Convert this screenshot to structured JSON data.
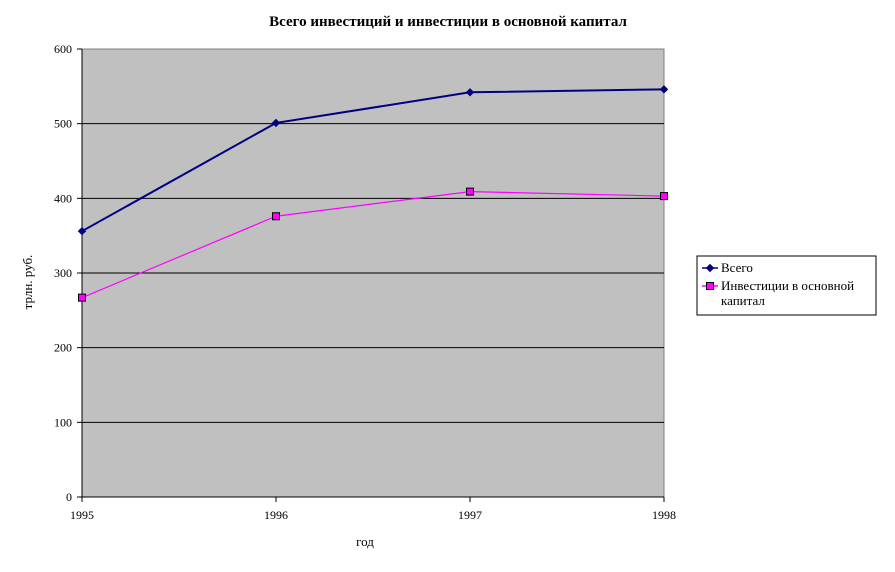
{
  "chart_data": {
    "type": "line",
    "title": "Всего инвестиций и инвестиции в основной капитал",
    "xlabel": "год",
    "ylabel": "трлн. руб.",
    "categories": [
      "1995",
      "1996",
      "1997",
      "1998"
    ],
    "ylim": [
      0,
      600
    ],
    "yticks": [
      0,
      100,
      200,
      300,
      400,
      500,
      600
    ],
    "grid": true,
    "legend_position": "right",
    "series": [
      {
        "name": "Всего",
        "values": [
          356,
          501,
          542,
          546
        ],
        "color": "#000080",
        "marker": "diamond"
      },
      {
        "name": "Инвестиции в основной капитал",
        "legend_lines": [
          "Инвестиции в основной",
          "капитал"
        ],
        "values": [
          267,
          376,
          409,
          403
        ],
        "color": "#ff00ff",
        "marker": "square"
      }
    ],
    "plot_background": "#c0c0c0"
  }
}
